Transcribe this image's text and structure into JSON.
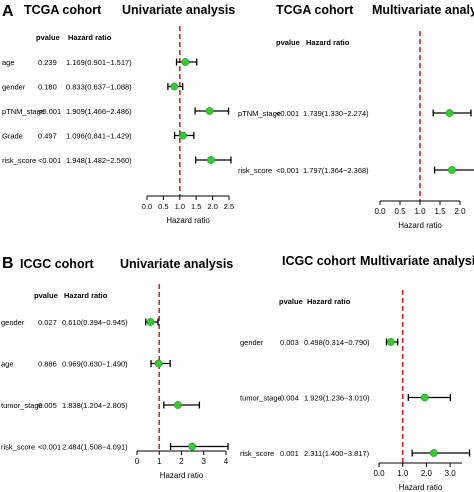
{
  "panels": [
    {
      "letter": "A",
      "sections": [
        {
          "cohort": "TCGA cohort",
          "title": "Univariate analysis"
        },
        {
          "cohort": "TCGA cohort",
          "title": "Multivariate analysis"
        }
      ]
    },
    {
      "letter": "B",
      "sections": [
        {
          "cohort": "ICGC cohort",
          "title": "Univariate analysis"
        },
        {
          "cohort": "ICGC cohort",
          "title": "Multivariate analysis"
        }
      ]
    }
  ],
  "columns": {
    "pvalue": "pvalue",
    "hr": "Hazard ratio"
  },
  "colors": {
    "point": "#33cc33",
    "refline": "#dd2222",
    "line": "#000000"
  },
  "chart_data": [
    {
      "type": "forest",
      "title": "Univariate analysis",
      "cohort": "TCGA cohort",
      "xlabel": "Hazard ratio",
      "xlim": [
        0,
        2.5
      ],
      "xticks": [
        0.0,
        0.5,
        1.0,
        1.5,
        2.0,
        2.5
      ],
      "xtick_labels": [
        "0.0",
        "0.5",
        "1.0",
        "1.5",
        "2.0",
        "2.5"
      ],
      "refline": 1,
      "rows": [
        {
          "label": "age",
          "pvalue": "0.239",
          "hr_text": "1.169(0.901−1.517)",
          "hr": 1.169,
          "low": 0.901,
          "high": 1.517
        },
        {
          "label": "gender",
          "pvalue": "0.180",
          "hr_text": "0.833(0.637−1.088)",
          "hr": 0.833,
          "low": 0.637,
          "high": 1.088
        },
        {
          "label": "pTNM_stage",
          "pvalue": "<0.001",
          "hr_text": "1.909(1.466−2.486)",
          "hr": 1.909,
          "low": 1.466,
          "high": 2.486
        },
        {
          "label": "Grade",
          "pvalue": "0.497",
          "hr_text": "1.096(0.841−1.429)",
          "hr": 1.096,
          "low": 0.841,
          "high": 1.429
        },
        {
          "label": "risk_score",
          "pvalue": "<0.001",
          "hr_text": "1.948(1.482−2.560)",
          "hr": 1.948,
          "low": 1.482,
          "high": 2.56
        }
      ]
    },
    {
      "type": "forest",
      "title": "Multivariate analysis",
      "cohort": "TCGA cohort",
      "xlabel": "Hazard ratio",
      "xlim": [
        0,
        2.0
      ],
      "xticks": [
        0.0,
        0.5,
        1.0,
        1.5,
        2.0
      ],
      "xtick_labels": [
        "0.0",
        "0.5",
        "1.0",
        "1.5",
        "2.0"
      ],
      "refline": 1,
      "rows": [
        {
          "label": "pTNM_stage",
          "pvalue": "<0.001",
          "hr_text": "1.739(1.330−2.274)",
          "hr": 1.739,
          "low": 1.33,
          "high": 2.274
        },
        {
          "label": "risk_score",
          "pvalue": "<0.001",
          "hr_text": "1.797(1.364−2.368)",
          "hr": 1.797,
          "low": 1.364,
          "high": 2.368
        }
      ]
    },
    {
      "type": "forest",
      "title": "Univariate analysis",
      "cohort": "ICGC cohort",
      "xlabel": "Hazard ratio",
      "xlim": [
        0,
        4
      ],
      "xticks": [
        0,
        1,
        2,
        3,
        4
      ],
      "xtick_labels": [
        "0",
        "1",
        "2",
        "3",
        "4"
      ],
      "refline": 1,
      "rows": [
        {
          "label": "gender",
          "pvalue": "0.027",
          "hr_text": "0.610(0.394−0.945)",
          "hr": 0.61,
          "low": 0.394,
          "high": 0.945
        },
        {
          "label": "age",
          "pvalue": "0.886",
          "hr_text": "0.969(0.630−1.490)",
          "hr": 0.969,
          "low": 0.63,
          "high": 1.49
        },
        {
          "label": "tumor_stage",
          "pvalue": "0.005",
          "hr_text": "1.838(1.204−2.805)",
          "hr": 1.838,
          "low": 1.204,
          "high": 2.805
        },
        {
          "label": "risk_score",
          "pvalue": "<0.001",
          "hr_text": "2.484(1.508−4.091)",
          "hr": 2.484,
          "low": 1.508,
          "high": 4.091
        }
      ]
    },
    {
      "type": "forest",
      "title": "Multivariate analysis",
      "cohort": "ICGC cohort",
      "xlabel": "Hazard ratio",
      "xlim": [
        0,
        3.5
      ],
      "xticks": [
        0.0,
        1.0,
        2.0,
        3.0
      ],
      "xtick_labels": [
        "0.0",
        "1.0",
        "2.0",
        "3.0"
      ],
      "refline": 1,
      "rows": [
        {
          "label": "gender",
          "pvalue": "0.003",
          "hr_text": "0.498(0.314−0.790)",
          "hr": 0.498,
          "low": 0.314,
          "high": 0.79
        },
        {
          "label": "tumor_stage",
          "pvalue": "0.004",
          "hr_text": "1.929(1.236−3.010)",
          "hr": 1.929,
          "low": 1.236,
          "high": 3.01
        },
        {
          "label": "risk_score",
          "pvalue": "0.001",
          "hr_text": "2.311(1.400−3.817)",
          "hr": 2.311,
          "low": 1.4,
          "high": 3.817
        }
      ]
    }
  ]
}
